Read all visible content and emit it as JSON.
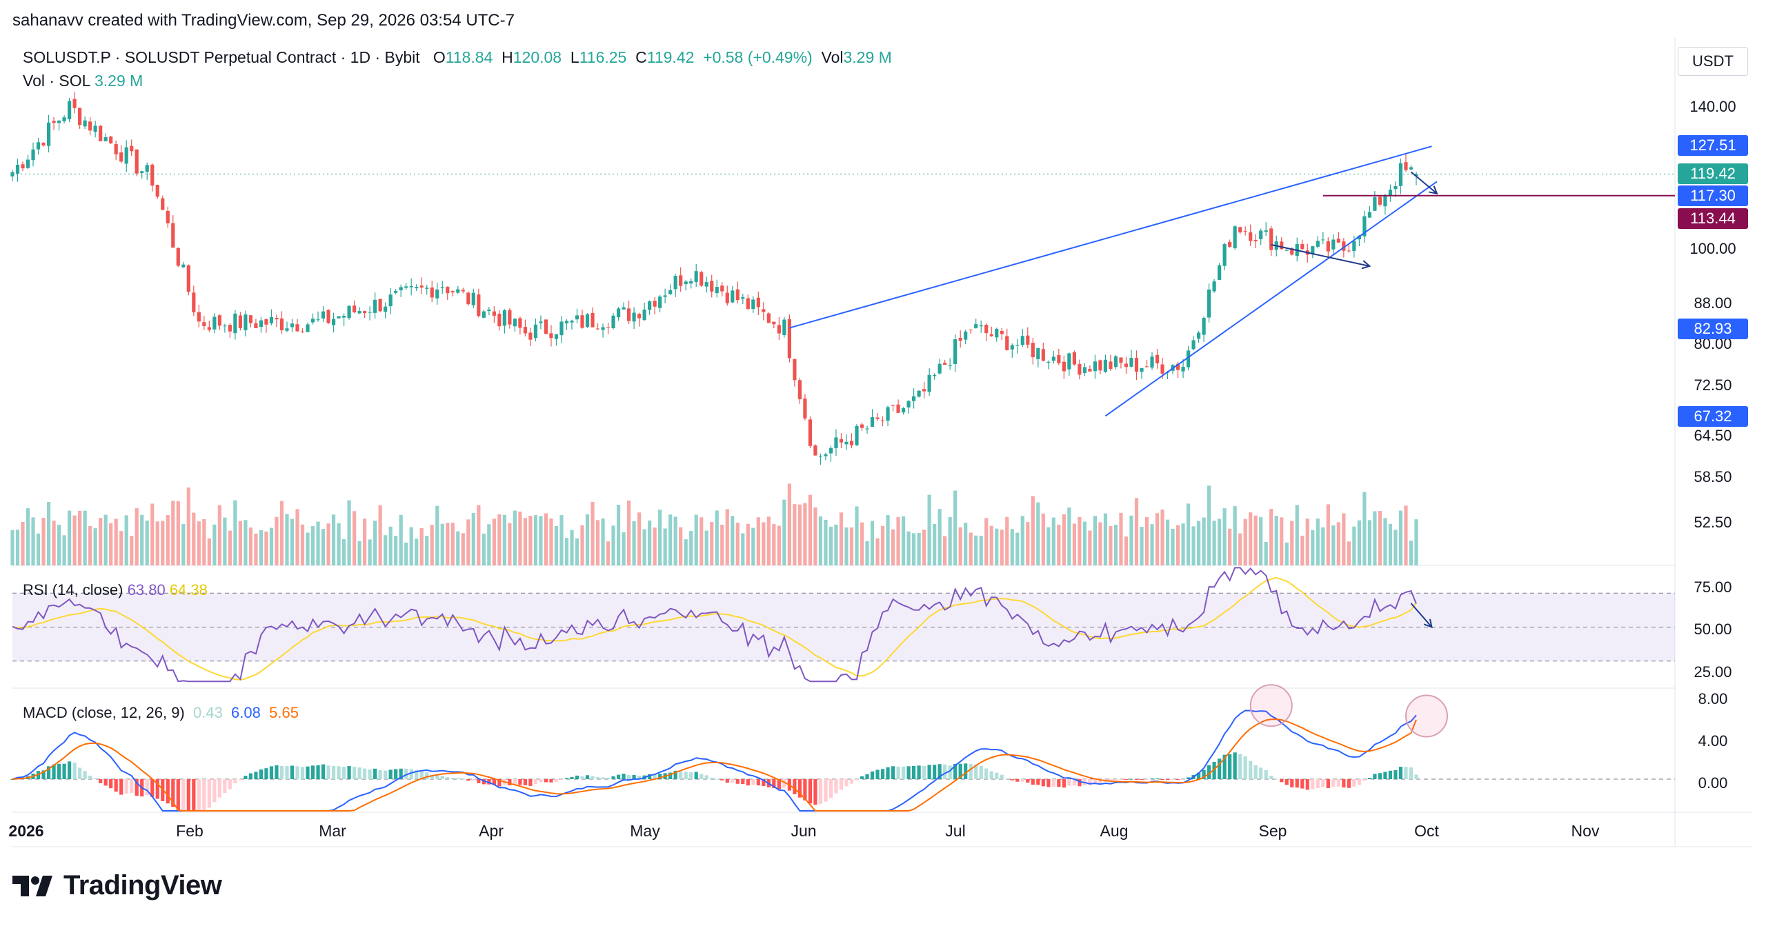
{
  "attribution": "sahanavv created with TradingView.com, Sep 29, 2026 03:54 UTC-7",
  "legend": {
    "symbol": "SOLUSDT.P · SOLUSDT Perpetual Contract · 1D · Bybit",
    "o_label": "O",
    "o_value": "118.84",
    "h_label": "H",
    "h_value": "120.08",
    "l_label": "L",
    "l_value": "116.25",
    "c_label": "C",
    "c_value": "119.42",
    "change": "+0.58 (+0.49%)",
    "vol_label": "Vol",
    "vol_value": "3.29 M"
  },
  "volume_legend": {
    "label": "Vol · SOL",
    "value": "3.29 M"
  },
  "currency_button": "USDT",
  "brand": "TradingView",
  "rsi_legend": {
    "label": "RSI (14, close)",
    "rsi": "63.80",
    "ma": "64.38"
  },
  "macd_legend": {
    "label": "MACD (close, 12, 26, 9)",
    "hist": "0.43",
    "macd": "6.08",
    "signal": "5.65"
  },
  "colors": {
    "up": "#26a69a",
    "down": "#ef5350",
    "trendline": "#2962ff",
    "level": "#880e4f",
    "rsi": "#7e57c2",
    "rsi_ma": "#fdd835",
    "macd": "#2962ff",
    "signal": "#ff6d00"
  },
  "chart_data": [
    {
      "type": "candlestick",
      "title": "SOLUSDT.P · SOLUSDT Perpetual Contract · 1D · Bybit",
      "y_axis_ticks": [
        "140.00",
        "100.00",
        "88.00",
        "80.00",
        "72.50",
        "64.50",
        "58.50",
        "52.50"
      ],
      "y_scale": "log",
      "x_axis_ticks": [
        "2026",
        "Feb",
        "Mar",
        "Apr",
        "May",
        "Jun",
        "Jul",
        "Aug",
        "Sep",
        "Oct",
        "Nov"
      ],
      "price_labels": [
        {
          "value": "127.51",
          "color": "#2962ff"
        },
        {
          "value": "119.42",
          "color": "#26a69a"
        },
        {
          "value": "117.30",
          "color": "#2962ff"
        },
        {
          "value": "113.44",
          "color": "#880e4f"
        },
        {
          "value": "82.93",
          "color": "#2962ff"
        },
        {
          "value": "67.32",
          "color": "#2962ff"
        }
      ],
      "last": {
        "open": 118.84,
        "high": 120.08,
        "low": 116.25,
        "close": 119.42
      },
      "monthly_path": [
        {
          "x": "2026-01-01",
          "close": 120
        },
        {
          "x": "2026-01-12",
          "close": 140
        },
        {
          "x": "2026-01-28",
          "close": 118
        },
        {
          "x": "2026-02-06",
          "close": 84
        },
        {
          "x": "2026-03-01",
          "close": 84
        },
        {
          "x": "2026-03-25",
          "close": 92
        },
        {
          "x": "2026-04-10",
          "close": 82
        },
        {
          "x": "2026-05-01",
          "close": 86
        },
        {
          "x": "2026-05-12",
          "close": 95
        },
        {
          "x": "2026-05-30",
          "close": 83
        },
        {
          "x": "2026-06-05",
          "close": 61
        },
        {
          "x": "2026-06-25",
          "close": 70
        },
        {
          "x": "2026-07-05",
          "close": 83
        },
        {
          "x": "2026-07-25",
          "close": 76
        },
        {
          "x": "2026-08-15",
          "close": 76
        },
        {
          "x": "2026-08-25",
          "close": 106
        },
        {
          "x": "2026-09-05",
          "close": 100
        },
        {
          "x": "2026-09-15",
          "close": 100
        },
        {
          "x": "2026-09-26",
          "close": 120
        },
        {
          "x": "2026-09-29",
          "close": 119.42
        }
      ],
      "annotations": [
        {
          "type": "rising wedge upper trendline",
          "from": {
            "x": "2026-05-31",
            "y": 82.93
          },
          "to": {
            "x": "2026-10-02",
            "y": 127.51
          }
        },
        {
          "type": "rising wedge lower trendline",
          "from": {
            "x": "2026-07-31",
            "y": 67.32
          },
          "to": {
            "x": "2026-10-03",
            "y": 117.3
          }
        },
        {
          "type": "horizontal level",
          "y": 113.44
        }
      ]
    },
    {
      "type": "bar",
      "title": "Vol · SOL",
      "last_value": "3.29 M"
    },
    {
      "type": "line",
      "title": "RSI (14, close)",
      "y_axis_ticks": [
        "75.00",
        "50.00",
        "25.00"
      ],
      "bands": [
        70,
        50,
        30
      ],
      "series": [
        {
          "name": "RSI",
          "last": 63.8
        },
        {
          "name": "MA",
          "last": 64.38
        }
      ]
    },
    {
      "type": "line",
      "title": "MACD (close, 12, 26, 9)",
      "y_axis_ticks": [
        "8.00",
        "4.00",
        "0.00"
      ],
      "series": [
        {
          "name": "Histogram",
          "last": 0.43
        },
        {
          "name": "MACD",
          "last": 6.08
        },
        {
          "name": "Signal",
          "last": 5.65
        }
      ]
    }
  ]
}
